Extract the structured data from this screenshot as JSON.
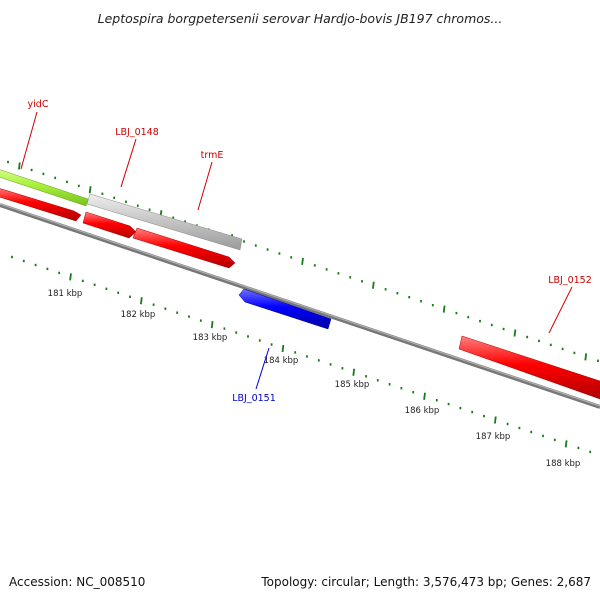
{
  "title": "Leptospira borgpetersenii serovar Hardjo-bovis JB197 chromos...",
  "footer": {
    "accession": "Accession: NC_008510",
    "summary": "Topology: circular; Length: 3,576,473 bp; Genes: 2,687"
  },
  "colors": {
    "forward_gene": "#ff0000",
    "reverse_gene": "#0000ff",
    "rna_gene": "#a8f03c",
    "other_gene": "#c8c8c8",
    "tick": "#1a7a1a",
    "backbone": "#808080",
    "label_forward": "#cc0000",
    "label_reverse": "#0000cc"
  },
  "tick_labels": [
    "181 kbp",
    "182 kbp",
    "183 kbp",
    "184 kbp",
    "185 kbp",
    "186 kbp",
    "187 kbp",
    "188 kbp"
  ],
  "gene_labels": [
    {
      "text": "yidC",
      "strand": "forward"
    },
    {
      "text": "LBJ_0148",
      "strand": "forward"
    },
    {
      "text": "trmE",
      "strand": "forward"
    },
    {
      "text": "LBJ_0151",
      "strand": "reverse"
    },
    {
      "text": "LBJ_0152",
      "strand": "forward"
    }
  ]
}
